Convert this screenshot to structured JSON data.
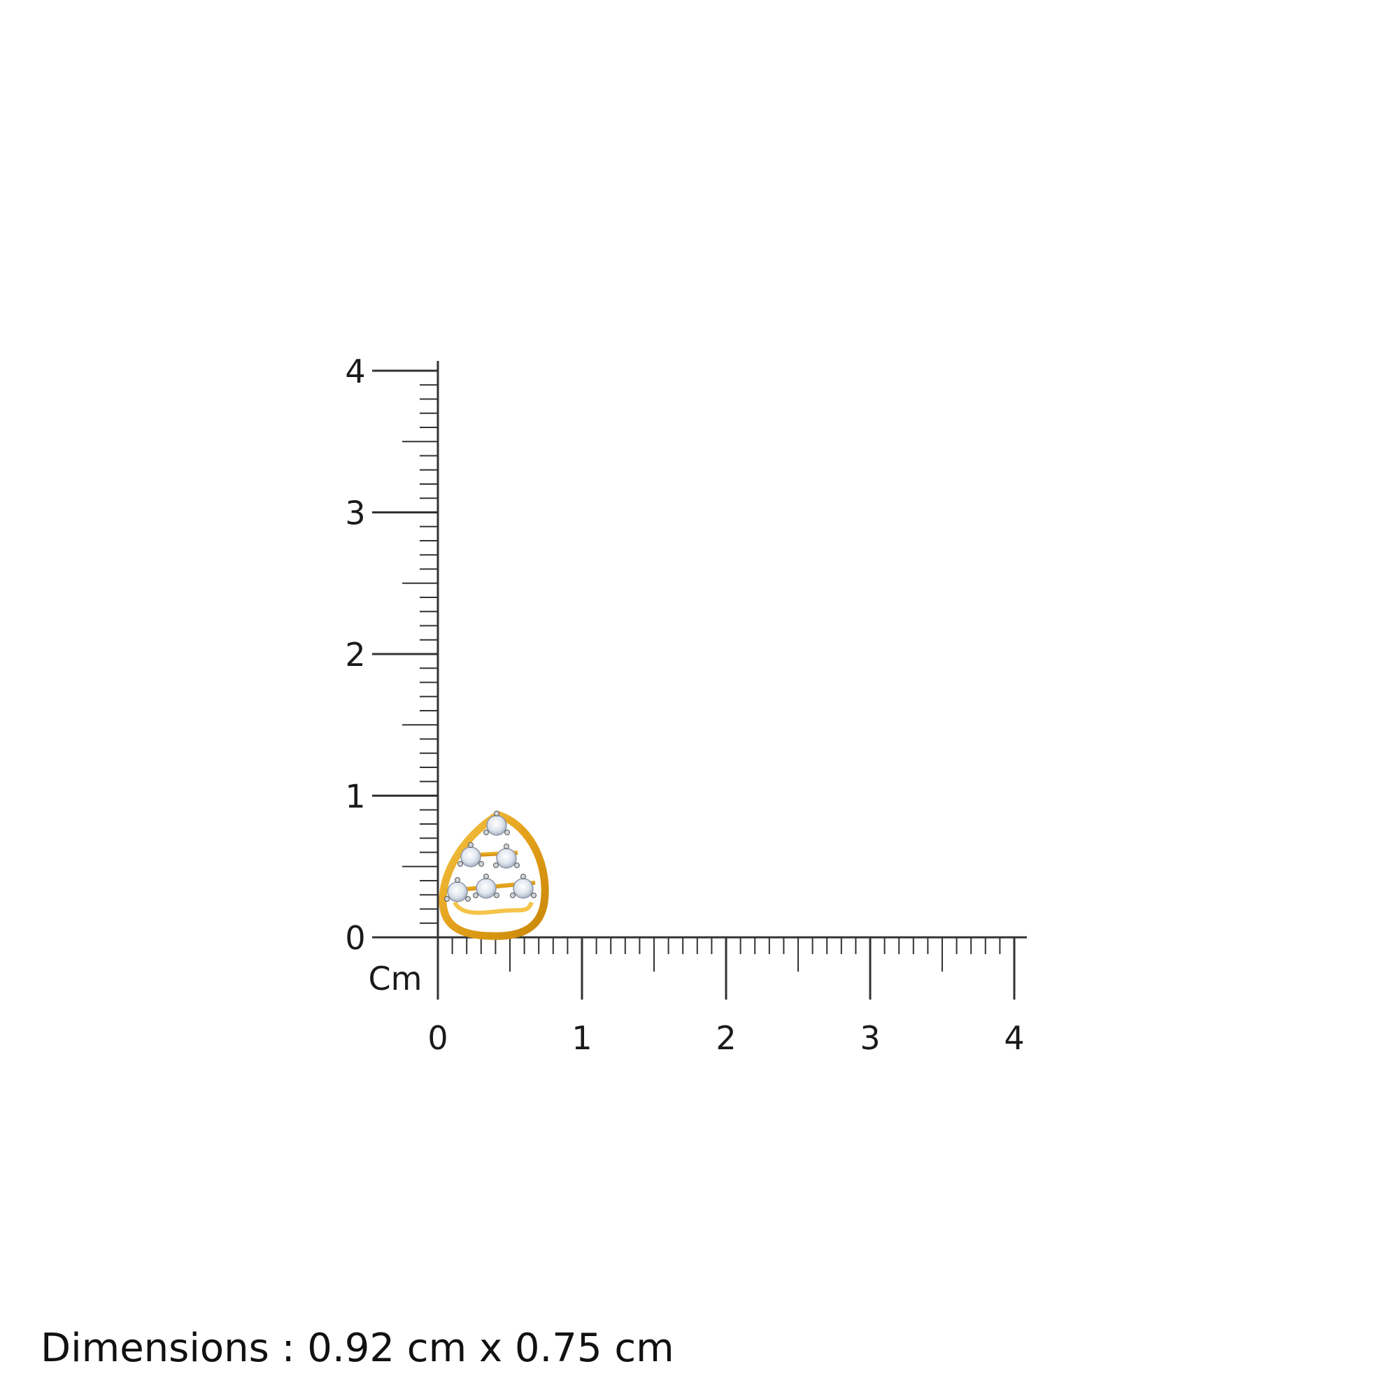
{
  "ruler": {
    "unit_label": "Cm",
    "x_ticks": [
      "0",
      "1",
      "2",
      "3",
      "4"
    ],
    "y_ticks": [
      "0",
      "1",
      "2",
      "3",
      "4"
    ],
    "range_cm": [
      0,
      4
    ],
    "subdivisions_per_cm": 10,
    "line_color": "#333333"
  },
  "product": {
    "type": "earring-image",
    "metal_color": "#e8a91c",
    "stone_count": 6
  },
  "caption": {
    "text": "Dimensions : 0.92 cm x 0.75 cm"
  }
}
